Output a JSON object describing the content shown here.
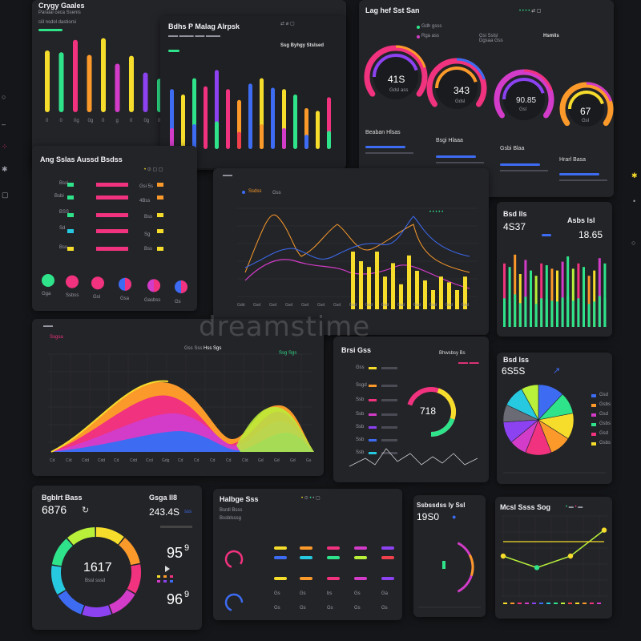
{
  "colors": {
    "bg": "#151619",
    "panel": "#232428",
    "yellow": "#f6dd2c",
    "orange": "#fb9a2a",
    "pink": "#f1327e",
    "magenta": "#d23cc8",
    "purple": "#8c42f0",
    "blue": "#3d6cf2",
    "cyan": "#27c9e0",
    "green": "#2fe38a",
    "lime": "#b8f03a",
    "red": "#f0404c"
  },
  "panel1": {
    "title": "Crygy Gaales",
    "subtitle": "Paralal ceca Ssenis",
    "line2": "ciil nsdol dastiorsi",
    "bars": [
      {
        "value": 70,
        "color": "#f6dd2c"
      },
      {
        "value": 68,
        "color": "#2fe38a"
      },
      {
        "value": 82,
        "color": "#f1327e"
      },
      {
        "value": 65,
        "color": "#fb9a2a"
      },
      {
        "value": 84,
        "color": "#f6dd2c"
      },
      {
        "value": 55,
        "color": "#d23cc8"
      },
      {
        "value": 64,
        "color": "#f6dd2c"
      },
      {
        "value": 45,
        "color": "#8c42f0"
      },
      {
        "value": 38,
        "color": "#2fe38a"
      }
    ],
    "x_labels": [
      "0",
      "0",
      "0g",
      "0g",
      "0",
      "g",
      "0",
      "0g",
      "0"
    ]
  },
  "panel2": {
    "title": "Bdhs P Malag Alrpsk",
    "subtitle": "Ssg Byhgy Stslsed",
    "bars": [
      {
        "value": 44,
        "color": "#3d6cf2"
      },
      {
        "value": 40,
        "color": "#f6dd2c"
      },
      {
        "value": 52,
        "color": "#2fe38a"
      },
      {
        "value": 46,
        "color": "#f1327e"
      },
      {
        "value": 58,
        "color": "#8c42f0"
      },
      {
        "value": 44,
        "color": "#f1327e"
      },
      {
        "value": 36,
        "color": "#fb9a2a"
      },
      {
        "value": 48,
        "color": "#3d6cf2"
      },
      {
        "value": 52,
        "color": "#f6dd2c"
      },
      {
        "value": 45,
        "color": "#3d6cf2"
      },
      {
        "value": 44,
        "color": "#f6dd2c"
      },
      {
        "value": 40,
        "color": "#2fe38a"
      },
      {
        "value": 30,
        "color": "#fb9a2a"
      },
      {
        "value": 28,
        "color": "#f6dd2c"
      },
      {
        "value": 38,
        "color": "#f1327e"
      }
    ]
  },
  "panel3": {
    "title": "Lag hef Sst San",
    "legend": [
      "Gdh gsss",
      "Rga ass",
      "Gsi Sslsl",
      "Dgsaa Gss",
      "Hsmlis"
    ],
    "gauges": [
      {
        "value": "41S",
        "sub": "Gdsl ass"
      },
      {
        "value": "343",
        "sub": "Gdsl"
      },
      {
        "value": "90.85",
        "sub": "Gsl"
      },
      {
        "value": "67",
        "sub": "Gsl"
      }
    ],
    "footer_titles": [
      "Beaban Hlsas",
      "Bsgi Hlaaa",
      "Gsbi Blaa",
      "Hrarl Basa"
    ]
  },
  "panel4": {
    "title": "Ang Sslas Aussd Bsdss",
    "rows": [
      {
        "label": "Bssi",
        "val": "Gsi 5s"
      },
      {
        "label": "Bsbi",
        "val": "4Bss"
      },
      {
        "label": "BSS",
        "val": "Bss"
      },
      {
        "label": "Sd",
        "val": "Sg"
      },
      {
        "label": "Bss",
        "val": "Bss"
      }
    ],
    "circles": [
      "Gga",
      "Ssbss",
      "Gsl",
      "Gsa",
      "Gasbss",
      "Gs"
    ]
  },
  "panel5": {
    "legend": [
      "Ssdss",
      "Gss"
    ],
    "x_labels": [
      "Gdd",
      "Gsd",
      "Gsd",
      "Gsd",
      "Gsd",
      "Gsd",
      "Gsd",
      "Gsd",
      "Gsd",
      "Gsd",
      "Gsd",
      "Gsd",
      "Gsd",
      "Gsd",
      "Gsd"
    ]
  },
  "panel6": {
    "title1": "Bsd lls",
    "value1": "4S37",
    "title2": "Asbs lsl",
    "value2": "18.65",
    "bars": [
      72,
      68,
      82,
      60,
      76,
      64,
      58,
      72,
      70,
      66,
      64,
      74,
      80,
      66,
      72,
      68,
      58,
      64,
      78,
      72
    ]
  },
  "panel7": {
    "title": "Ssgsa",
    "legend": [
      "Gss Sss",
      "Hss Sgs",
      "Ssg Sgs"
    ],
    "x_labels": [
      "Cd",
      "Cld",
      "Cdd",
      "Cdd",
      "Cd",
      "Cdd",
      "Ccd",
      "Gdg",
      "Cd",
      "Cd",
      "Cd",
      "Cd",
      "Cld",
      "Gd",
      "Gd",
      "Gd",
      "Gs"
    ]
  },
  "panel8": {
    "title": "Brsi Gss",
    "title2": "Bhwsbsy Bs",
    "gauge_value": "718",
    "rows": [
      "Gss",
      "Ssgd",
      "Ssb",
      "Ssb",
      "Ssb",
      "Ssb",
      "Ssb"
    ]
  },
  "panel9": {
    "title": "Bsd lss",
    "value": "6S5S",
    "legend": [
      "Gsd",
      "Gsbs",
      "Gsd",
      "Gsbs",
      "Gsd",
      "Gsbs"
    ]
  },
  "panel10": {
    "title": "Bgblrt Bass",
    "value": "6876",
    "title2": "Gsga ll8",
    "value2": "243.4S",
    "value2_unit": "sss",
    "center_value": "1617",
    "center_sub": "Bssl sssd",
    "stat1": "95",
    "stat1_sup": "9",
    "stat2": "96",
    "stat2_sup": "9"
  },
  "panel11": {
    "title": "Halbge Sss",
    "subtitle": "Bsrdl Bsss",
    "sub2": "Bssblsssg",
    "cells": [
      "Gs",
      "Gs",
      "bs",
      "Gs",
      "Ga",
      "Gs",
      "Gs",
      "Gs",
      "Gs",
      "Gs"
    ]
  },
  "panel12": {
    "title": "Ssbssdss ly Ssl",
    "value": "19S0"
  },
  "panel13": {
    "title": "Mcsl Ssss Sog",
    "points": [
      {
        "x": 0,
        "y": 2
      },
      {
        "x": 1,
        "y": 1.2
      },
      {
        "x": 2,
        "y": 2
      },
      {
        "x": 3,
        "y": 3.8
      }
    ]
  },
  "watermark": "dreamstime"
}
